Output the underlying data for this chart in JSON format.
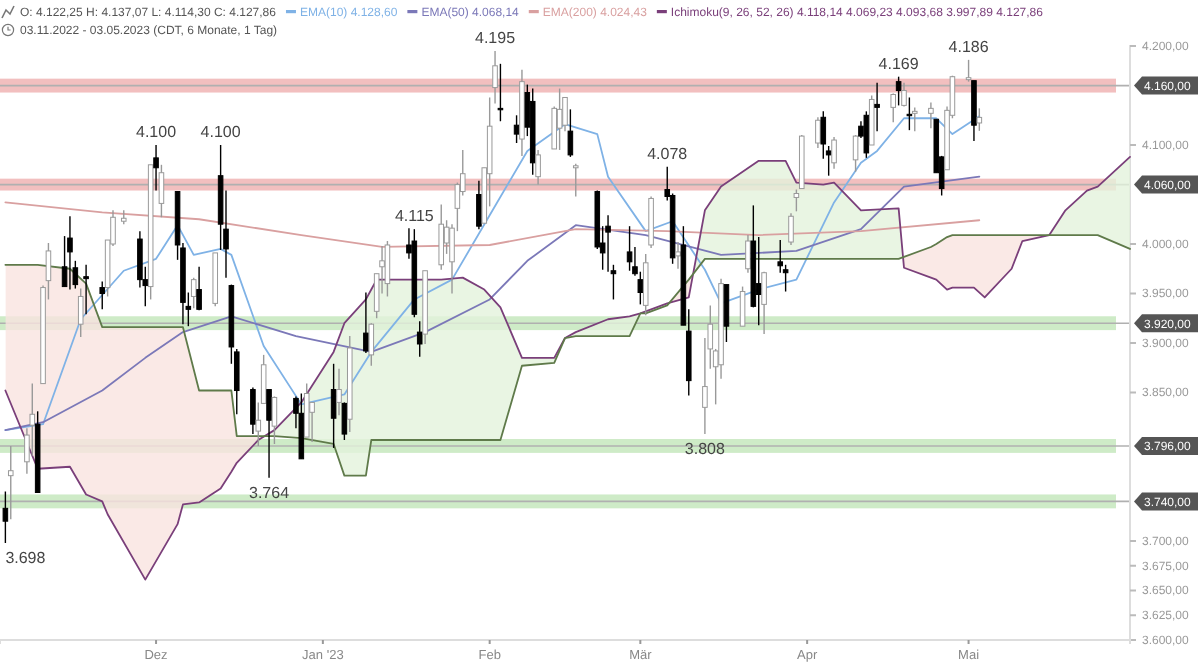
{
  "chart_data": {
    "type": "candlestick",
    "title": "O: 4.122,25 H: 4.137,07 L: 4.114,30 C: 4.127,86",
    "subtitle": "03.11.2022 - 03.05.2023 (CDT, 6 Monate, 1 Tag)",
    "legend": "top",
    "xlim": [
      "2022-11-02",
      "2023-05-31"
    ],
    "xticks": [
      {
        "value": "2022-12-01",
        "label": "Dez"
      },
      {
        "value": "2023-01-01",
        "label": "Jan '23"
      },
      {
        "value": "2023-02-01",
        "label": "Feb"
      },
      {
        "value": "2023-03-01",
        "label": "Mär"
      },
      {
        "value": "2023-04-01",
        "label": "Apr"
      },
      {
        "value": "2023-05-01",
        "label": "Mai"
      }
    ],
    "ylim": [
      3600,
      4200
    ],
    "yticks": [
      {
        "value": 3600,
        "label": "3.600,00"
      },
      {
        "value": 3625,
        "label": "3.625,00"
      },
      {
        "value": 3650,
        "label": "3.650,00"
      },
      {
        "value": 3675,
        "label": "3.675,00"
      },
      {
        "value": 3700,
        "label": "3.700,00"
      },
      {
        "value": 3850,
        "label": "3.850,00"
      },
      {
        "value": 3900,
        "label": "3.900,00"
      },
      {
        "value": 3950,
        "label": "3.950,00"
      },
      {
        "value": 4000,
        "label": "4.000,00"
      },
      {
        "value": 4100,
        "label": "4.100,00"
      },
      {
        "value": 4200,
        "label": "4.200,00"
      }
    ],
    "x": [
      "2022-11-03",
      "2022-11-04",
      "2022-11-07",
      "2022-11-08",
      "2022-11-09",
      "2022-11-10",
      "2022-11-11",
      "2022-11-14",
      "2022-11-15",
      "2022-11-16",
      "2022-11-17",
      "2022-11-18",
      "2022-11-21",
      "2022-11-22",
      "2022-11-23",
      "2022-11-25",
      "2022-11-28",
      "2022-11-29",
      "2022-11-30",
      "2022-12-01",
      "2022-12-02",
      "2022-12-05",
      "2022-12-06",
      "2022-12-07",
      "2022-12-08",
      "2022-12-09",
      "2022-12-12",
      "2022-12-13",
      "2022-12-14",
      "2022-12-15",
      "2022-12-16",
      "2022-12-19",
      "2022-12-20",
      "2022-12-21",
      "2022-12-22",
      "2022-12-23",
      "2022-12-27",
      "2022-12-28",
      "2022-12-29",
      "2022-12-30",
      "2023-01-03",
      "2023-01-04",
      "2023-01-05",
      "2023-01-06",
      "2023-01-09",
      "2023-01-10",
      "2023-01-11",
      "2023-01-12",
      "2023-01-13",
      "2023-01-17",
      "2023-01-18",
      "2023-01-19",
      "2023-01-20",
      "2023-01-23",
      "2023-01-24",
      "2023-01-25",
      "2023-01-26",
      "2023-01-27",
      "2023-01-30",
      "2023-01-31",
      "2023-02-01",
      "2023-02-02",
      "2023-02-03",
      "2023-02-06",
      "2023-02-07",
      "2023-02-08",
      "2023-02-09",
      "2023-02-10",
      "2023-02-13",
      "2023-02-14",
      "2023-02-15",
      "2023-02-16",
      "2023-02-17",
      "2023-02-21",
      "2023-02-22",
      "2023-02-23",
      "2023-02-24",
      "2023-02-27",
      "2023-02-28",
      "2023-03-01",
      "2023-03-02",
      "2023-03-03",
      "2023-03-06",
      "2023-03-07",
      "2023-03-08",
      "2023-03-09",
      "2023-03-10",
      "2023-03-13",
      "2023-03-14",
      "2023-03-15",
      "2023-03-16",
      "2023-03-17",
      "2023-03-20",
      "2023-03-21",
      "2023-03-22",
      "2023-03-23",
      "2023-03-24",
      "2023-03-27",
      "2023-03-28",
      "2023-03-29",
      "2023-03-30",
      "2023-03-31",
      "2023-04-03",
      "2023-04-04",
      "2023-04-05",
      "2023-04-06",
      "2023-04-10",
      "2023-04-11",
      "2023-04-12",
      "2023-04-13",
      "2023-04-14",
      "2023-04-17",
      "2023-04-18",
      "2023-04-19",
      "2023-04-20",
      "2023-04-21",
      "2023-04-24",
      "2023-04-25",
      "2023-04-26",
      "2023-04-27",
      "2023-04-28",
      "2023-05-01",
      "2023-05-02",
      "2023-05-03"
    ],
    "ohlc": [
      [
        3733,
        3750,
        3698,
        3720
      ],
      [
        3766,
        3796,
        3722,
        3771
      ],
      [
        3780,
        3814,
        3768,
        3807
      ],
      [
        3817,
        3859,
        3786,
        3828
      ],
      [
        3818,
        3831,
        3749,
        3749
      ],
      [
        3859,
        3958,
        3859,
        3956
      ],
      [
        3963,
        4001,
        3944,
        3993
      ],
      [
        3977,
        4008,
        3957,
        3957
      ],
      [
        4006,
        4028,
        3954,
        3992
      ],
      [
        3976,
        3983,
        3955,
        3959
      ],
      [
        3919,
        3955,
        3906,
        3947
      ],
      [
        3967,
        3979,
        3929,
        3965
      ],
      [
        3956,
        3962,
        3934,
        3950
      ],
      [
        3956,
        4004,
        3947,
        4004
      ],
      [
        4000,
        4034,
        3998,
        4027
      ],
      [
        4023,
        4034,
        4020,
        4026
      ],
      [
        4005,
        4013,
        3956,
        3964
      ],
      [
        3964,
        3977,
        3937,
        3958
      ],
      [
        3957,
        4080,
        3944,
        4080
      ],
      [
        4087,
        4100,
        4054,
        4077
      ],
      [
        4041,
        4080,
        4027,
        4072
      ],
      [
        4053,
        4053,
        3984,
        3999
      ],
      [
        3996,
        4001,
        3919,
        3941
      ],
      [
        3937,
        3951,
        3917,
        3934
      ],
      [
        3947,
        3966,
        3935,
        3964
      ],
      [
        3954,
        3977,
        3933,
        3934
      ],
      [
        3940,
        3991,
        3937,
        3991
      ],
      [
        4069,
        4100,
        3994,
        4020
      ],
      [
        4015,
        4054,
        3966,
        3995
      ],
      [
        3958,
        3959,
        3879,
        3896
      ],
      [
        3891,
        3894,
        3828,
        3852
      ],
      [
        3853,
        3855,
        3808,
        3818
      ],
      [
        3811,
        3840,
        3796,
        3822
      ],
      [
        3839,
        3888,
        3839,
        3878
      ],
      [
        3853,
        3853,
        3764,
        3822
      ],
      [
        3816,
        3846,
        3798,
        3845
      ],
      [
        3844,
        3846,
        3814,
        3829
      ],
      [
        3829,
        3849,
        3783,
        3783
      ],
      [
        3805,
        3859,
        3805,
        3849
      ],
      [
        3830,
        3840,
        3800,
        3840
      ],
      [
        3853,
        3879,
        3794,
        3824
      ],
      [
        3840,
        3874,
        3827,
        3853
      ],
      [
        3839,
        3840,
        3802,
        3808
      ],
      [
        3823,
        3907,
        3810,
        3895
      ],
      [
        3910,
        3951,
        3890,
        3892
      ],
      [
        3888,
        3920,
        3877,
        3919
      ],
      [
        3932,
        3970,
        3925,
        3970
      ],
      [
        3977,
        3998,
        3950,
        3983
      ],
      [
        3960,
        4003,
        3947,
        3999
      ],
      [
        3999,
        4016,
        3985,
        3991
      ],
      [
        4003,
        4015,
        3926,
        3929
      ],
      [
        3911,
        3922,
        3886,
        3899
      ],
      [
        3909,
        3973,
        3899,
        3973
      ],
      [
        3979,
        4040,
        3974,
        4020
      ],
      [
        4001,
        4024,
        3990,
        4017
      ],
      [
        3982,
        4020,
        3950,
        4016
      ],
      [
        4036,
        4062,
        4013,
        4060
      ],
      [
        4053,
        4095,
        4049,
        4071
      ],
      [
        4050,
        4064,
        4015,
        4018
      ],
      [
        4021,
        4077,
        4021,
        4077
      ],
      [
        4071,
        4148,
        4038,
        4119
      ],
      [
        4158,
        4195,
        4142,
        4180
      ],
      [
        4137,
        4182,
        4124,
        4136
      ],
      [
        4120,
        4130,
        4102,
        4111
      ],
      [
        4106,
        4176,
        4089,
        4164
      ],
      [
        4153,
        4161,
        4109,
        4118
      ],
      [
        4144,
        4157,
        4070,
        4082
      ],
      [
        4068,
        4095,
        4060,
        4090
      ],
      [
        4096,
        4139,
        4096,
        4137
      ],
      [
        4117,
        4157,
        4095,
        4136
      ],
      [
        4120,
        4148,
        4114,
        4148
      ],
      [
        4114,
        4136,
        4088,
        4090
      ],
      [
        4077,
        4081,
        4048,
        4079
      ],
      [
        4053,
        4054,
        3995,
        3997
      ],
      [
        4001,
        4018,
        3974,
        3991
      ],
      [
        4018,
        4029,
        3972,
        4012
      ],
      [
        3973,
        3979,
        3944,
        3970
      ],
      [
        3992,
        4018,
        3973,
        3982
      ],
      [
        3977,
        3997,
        3968,
        3970
      ],
      [
        3964,
        3972,
        3939,
        3951
      ],
      [
        3938,
        3990,
        3928,
        3981
      ],
      [
        3999,
        4048,
        3996,
        4046
      ],
      [
        4055,
        4078,
        4044,
        4048
      ],
      [
        4049,
        4051,
        3980,
        3986
      ],
      [
        3988,
        4002,
        3975,
        3992
      ],
      [
        3999,
        4018,
        3918,
        3918
      ],
      [
        3912,
        3934,
        3847,
        3862
      ],
      [
        3835,
        3905,
        3808,
        3856
      ],
      [
        3894,
        3938,
        3874,
        3919
      ],
      [
        3876,
        3894,
        3838,
        3892
      ],
      [
        3878,
        3965,
        3864,
        3960
      ],
      [
        3959,
        3959,
        3901,
        3917
      ],
      [
        3917,
        3957,
        3917,
        3952
      ],
      [
        3975,
        4009,
        3971,
        4003
      ],
      [
        4003,
        4039,
        3936,
        3937
      ],
      [
        3960,
        4007,
        3918,
        3949
      ],
      [
        3939,
        3972,
        3909,
        3971
      ],
      [
        3982,
        4004,
        3971,
        3978
      ],
      [
        3974,
        3979,
        3952,
        3971
      ],
      [
        4002,
        4031,
        3999,
        4028
      ],
      [
        4047,
        4055,
        4033,
        4051
      ],
      [
        4056,
        4110,
        4056,
        4109
      ],
      [
        4102,
        4128,
        4097,
        4125
      ],
      [
        4128,
        4134,
        4086,
        4101
      ],
      [
        4094,
        4099,
        4069,
        4090
      ],
      [
        4082,
        4108,
        4076,
        4105
      ],
      [
        4085,
        4110,
        4073,
        4109
      ],
      [
        4119,
        4124,
        4107,
        4109
      ],
      [
        4130,
        4134,
        4087,
        4092
      ],
      [
        4100,
        4150,
        4100,
        4146
      ],
      [
        4141,
        4163,
        4114,
        4138
      ],
      [
        4138,
        4152,
        4123,
        4151
      ],
      [
        4164,
        4169,
        4140,
        4155
      ],
      [
        4140,
        4163,
        4139,
        4155
      ],
      [
        4131,
        4148,
        4115,
        4130
      ],
      [
        4132,
        4138,
        4114,
        4134
      ],
      [
        4132,
        4143,
        4117,
        4137
      ],
      [
        4126,
        4126,
        4072,
        4072
      ],
      [
        4088,
        4089,
        4049,
        4056
      ],
      [
        4075,
        4139,
        4075,
        4135
      ],
      [
        4130,
        4170,
        4127,
        4169
      ],
      [
        4166,
        4186,
        4164,
        4168
      ],
      [
        4165,
        4165,
        4104,
        4120
      ],
      [
        4122.25,
        4137.07,
        4114.3,
        4127.86
      ]
    ],
    "series": [
      {
        "type": "line",
        "name": "EMA(10) 4.128,60",
        "color": "#7fb2e6",
        "x": [
          "2022-11-03",
          "2022-11-10",
          "2022-11-17",
          "2022-11-25",
          "2022-12-01",
          "2022-12-05",
          "2022-12-08",
          "2022-12-13",
          "2022-12-15",
          "2022-12-21",
          "2022-12-28",
          "2023-01-05",
          "2023-01-10",
          "2023-01-18",
          "2023-01-25",
          "2023-02-01",
          "2023-02-08",
          "2023-02-15",
          "2023-02-21",
          "2023-02-23",
          "2023-03-02",
          "2023-03-07",
          "2023-03-13",
          "2023-03-16",
          "2023-03-23",
          "2023-03-30",
          "2023-04-06",
          "2023-04-11",
          "2023-04-14",
          "2023-04-19",
          "2023-04-25",
          "2023-04-28",
          "2023-05-03"
        ],
        "values": [
          3812,
          3818,
          3924,
          3973,
          3985,
          4019,
          3989,
          3995,
          3989,
          3897,
          3838,
          3848,
          3891,
          3944,
          3964,
          4029,
          4094,
          4121,
          4111,
          4068,
          4013,
          4023,
          3974,
          3940,
          3954,
          3964,
          4042,
          4082,
          4094,
          4127,
          4127,
          4111,
          4129
        ]
      },
      {
        "type": "line",
        "name": "EMA(50) 4.068,14",
        "color": "#7b78b8",
        "x": [
          "2022-11-03",
          "2022-11-10",
          "2022-11-21",
          "2022-11-29",
          "2022-12-06",
          "2022-12-15",
          "2022-12-27",
          "2023-01-10",
          "2023-01-20",
          "2023-02-01",
          "2023-02-08",
          "2023-02-17",
          "2023-03-02",
          "2023-03-16",
          "2023-03-30",
          "2023-04-11",
          "2023-04-19",
          "2023-05-03"
        ],
        "values": [
          3812,
          3820,
          3852,
          3885,
          3911,
          3927,
          3907,
          3891,
          3911,
          3944,
          3983,
          4019,
          4009,
          3989,
          3993,
          4015,
          4058,
          4068
        ]
      },
      {
        "type": "line",
        "name": "EMA(200) 4.024,43",
        "color": "#d9a0a0",
        "x": [
          "2022-11-03",
          "2022-11-21",
          "2022-12-09",
          "2022-12-28",
          "2023-01-12",
          "2023-02-01",
          "2023-02-17",
          "2023-03-06",
          "2023-03-23",
          "2023-04-11",
          "2023-05-03"
        ],
        "values": [
          4042,
          4032,
          4025,
          4009,
          3997,
          3999,
          4015,
          4013,
          4009,
          4013,
          4024
        ]
      },
      {
        "type": "line",
        "name": "Ichimoku(9, 26, 52, 26) 4.118,14 4.069,23 4.093,68 3.997,89 4.127,86",
        "color": "#7a3f7a",
        "x": [
          "2022-11-03",
          "2022-11-09",
          "2022-11-15",
          "2022-11-18",
          "2022-11-21",
          "2022-11-22",
          "2022-11-29",
          "2022-12-05",
          "2022-12-06",
          "2022-12-09",
          "2022-12-13",
          "2022-12-15",
          "2022-12-16",
          "2022-12-20",
          "2022-12-23",
          "2022-12-28",
          "2023-01-03",
          "2023-01-05",
          "2023-01-09",
          "2023-01-10",
          "2023-01-11",
          "2023-01-23",
          "2023-01-27",
          "2023-01-31",
          "2023-02-03",
          "2023-02-07",
          "2023-02-13",
          "2023-02-15",
          "2023-02-17",
          "2023-02-23",
          "2023-02-27",
          "2023-03-01",
          "2023-03-02",
          "2023-03-06",
          "2023-03-10",
          "2023-03-13",
          "2023-03-16",
          "2023-03-23",
          "2023-03-28",
          "2023-03-30",
          "2023-04-04",
          "2023-04-06",
          "2023-04-11",
          "2023-04-18",
          "2023-04-19",
          "2023-04-24",
          "2023-04-25",
          "2023-04-27",
          "2023-04-28",
          "2023-05-02",
          "2023-05-04",
          "2023-05-09",
          "2023-05-11",
          "2023-05-16",
          "2023-05-19",
          "2023-05-23",
          "2023-05-25",
          "2023-05-31"
        ],
        "values": [
          3852,
          3773,
          3775,
          3747,
          3740,
          3727,
          3661,
          3717,
          3737,
          3739,
          3753,
          3770,
          3779,
          3802,
          3812,
          3840,
          3891,
          3920,
          3944,
          3954,
          3964,
          3964,
          3966,
          3954,
          3936,
          3885,
          3885,
          3905,
          3911,
          3924,
          3927,
          3930,
          3932,
          3940,
          3946,
          4034,
          4058,
          4084,
          4084,
          4062,
          4060,
          4062,
          4034,
          4036,
          3976,
          3966,
          3964,
          3954,
          3956,
          3956,
          3946,
          3975,
          4003,
          4009,
          4034,
          4054,
          4058,
          4088
        ]
      },
      {
        "type": "line",
        "color": "#5f7a4a",
        "x": [
          "2022-11-03",
          "2022-11-09",
          "2022-11-15",
          "2022-11-18",
          "2022-11-21",
          "2022-11-22",
          "2022-11-29",
          "2022-12-05",
          "2022-12-06",
          "2022-12-09",
          "2022-12-13",
          "2022-12-15",
          "2022-12-16",
          "2022-12-20",
          "2022-12-23",
          "2022-12-28",
          "2023-01-03",
          "2023-01-05",
          "2023-01-09",
          "2023-01-10",
          "2023-01-11",
          "2023-01-23",
          "2023-01-27",
          "2023-01-31",
          "2023-02-03",
          "2023-02-07",
          "2023-02-13",
          "2023-02-15",
          "2023-02-17",
          "2023-02-23",
          "2023-02-27",
          "2023-03-01",
          "2023-03-02",
          "2023-03-06",
          "2023-03-10",
          "2023-03-13",
          "2023-03-16",
          "2023-03-23",
          "2023-03-28",
          "2023-03-30",
          "2023-04-04",
          "2023-04-06",
          "2023-04-11",
          "2023-04-18",
          "2023-04-19",
          "2023-04-24",
          "2023-04-25",
          "2023-04-27",
          "2023-04-28",
          "2023-05-02",
          "2023-05-04",
          "2023-05-09",
          "2023-05-11",
          "2023-05-16",
          "2023-05-19",
          "2023-05-23",
          "2023-05-25",
          "2023-05-31"
        ],
        "values": [
          3979,
          3979,
          3975,
          3960,
          3916,
          3916,
          3916,
          3916,
          3916,
          3852,
          3852,
          3852,
          3806,
          3806,
          3806,
          3804,
          3798,
          3766,
          3766,
          3802,
          3802,
          3802,
          3802,
          3802,
          3802,
          3877,
          3880,
          3905,
          3907,
          3907,
          3907,
          3930,
          3930,
          3938,
          3964,
          3985,
          3985,
          3985,
          3985,
          3985,
          3985,
          3985,
          3985,
          3985,
          3987,
          3997,
          4000,
          4007,
          4009,
          4009,
          4009,
          4009,
          4009,
          4009,
          4009,
          4009,
          4009,
          3995
        ]
      }
    ],
    "bands": [
      {
        "axis": "y",
        "from": 4153,
        "to": 4167,
        "color": "#f0b4b4"
      },
      {
        "axis": "y",
        "from": 4054,
        "to": 4066,
        "color": "#f0b4b4"
      },
      {
        "axis": "y",
        "from": 3913,
        "to": 3927,
        "color": "#c5e8bd"
      },
      {
        "axis": "y",
        "from": 3789,
        "to": 3803,
        "color": "#c5e8bd"
      },
      {
        "axis": "y",
        "from": 3733,
        "to": 3747,
        "color": "#c5e8bd"
      }
    ],
    "ref_lines": [
      {
        "axis": "y",
        "value": 4160,
        "label": "4.160,00",
        "color": "#b0b0b0"
      },
      {
        "axis": "y",
        "value": 4060,
        "label": "4.060,00",
        "color": "#b0b0b0"
      },
      {
        "axis": "y",
        "value": 3920,
        "label": "3.920,00",
        "color": "#b0b0b0"
      },
      {
        "axis": "y",
        "value": 3796,
        "label": "3.796,00",
        "color": "#b0b0b0"
      },
      {
        "axis": "y",
        "value": 3740,
        "label": "3.740,00",
        "color": "#b0b0b0"
      }
    ],
    "annotations": [
      {
        "text": "3.698",
        "x": "2022-11-03",
        "y": 3698
      },
      {
        "text": "4.100",
        "x": "2022-12-01",
        "y": 4100
      },
      {
        "text": "4.100",
        "x": "2022-12-13",
        "y": 4100
      },
      {
        "text": "3.764",
        "x": "2022-12-22",
        "y": 3764
      },
      {
        "text": "4.115",
        "x": "2023-01-18",
        "y": 4015
      },
      {
        "text": "4.195",
        "x": "2023-02-02",
        "y": 4195
      },
      {
        "text": "4.078",
        "x": "2023-03-06",
        "y": 4078
      },
      {
        "text": "3.808",
        "x": "2023-03-13",
        "y": 3808
      },
      {
        "text": "4.169",
        "x": "2023-04-18",
        "y": 4169
      },
      {
        "text": "4.186",
        "x": "2023-05-01",
        "y": 4186
      }
    ]
  }
}
